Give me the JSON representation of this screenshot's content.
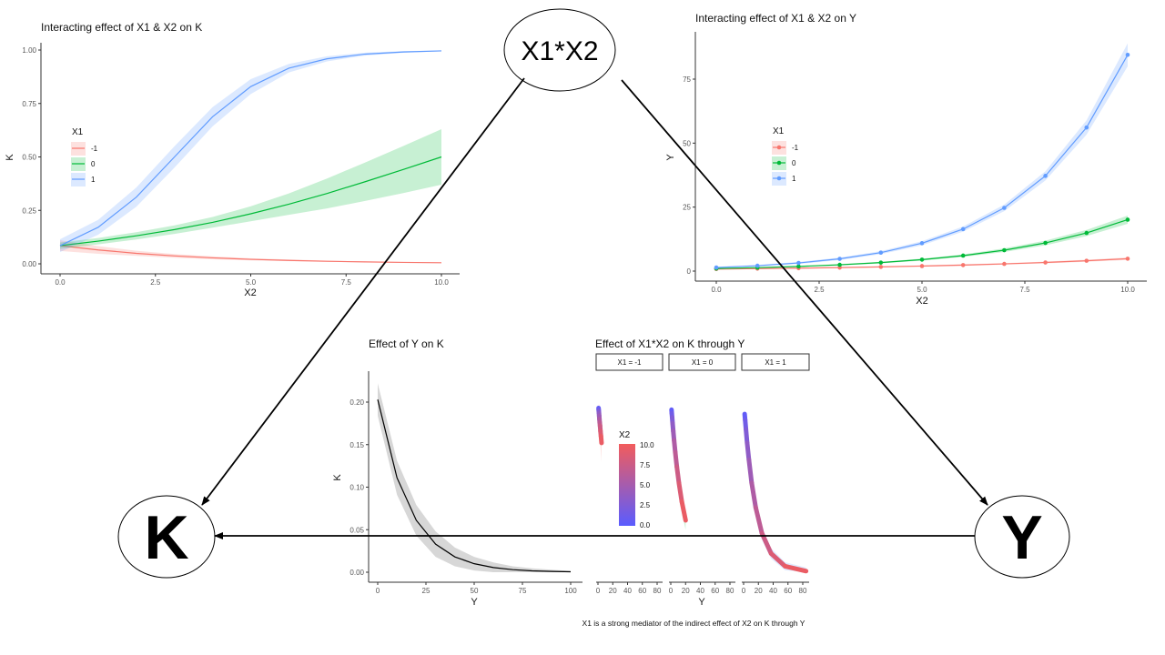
{
  "diagram": {
    "nodes": {
      "interaction": "X1*X2",
      "k": "K",
      "y": "Y"
    },
    "caption": "X1 is a strong mediator of the indirect effect of X2 on K through Y"
  },
  "colors": {
    "neg": "#f8766d",
    "zero": "#00ba38",
    "pos": "#619cff",
    "grad_low": "#5a5cff",
    "grad_high": "#f25c5c",
    "band_gray": "#d3d3d3"
  },
  "chart_data": [
    {
      "type": "line",
      "title": "Interacting effect of X1 & X2 on K",
      "xlabel": "X2",
      "ylabel": "K",
      "xlim": [
        0,
        10
      ],
      "ylim": [
        0,
        1
      ],
      "xticks": [
        "0.0",
        "2.5",
        "5.0",
        "7.5",
        "10.0"
      ],
      "yticks": [
        "0.00",
        "0.25",
        "0.50",
        "0.75",
        "1.00"
      ],
      "legend": {
        "title": "X1",
        "placement": "left"
      },
      "x": [
        0,
        1,
        2,
        3,
        4,
        5,
        6,
        7,
        8,
        9,
        10
      ],
      "series": [
        {
          "name": "-1",
          "values": [
            0.085,
            0.065,
            0.049,
            0.037,
            0.028,
            0.021,
            0.016,
            0.012,
            0.009,
            0.0066,
            0.005
          ],
          "halfwidth": [
            0.025,
            0.018,
            0.012,
            0.009,
            0.007,
            0.005,
            0.004,
            0.003,
            0.002,
            0.002,
            0.002
          ]
        },
        {
          "name": "0",
          "values": [
            0.085,
            0.106,
            0.131,
            0.16,
            0.194,
            0.234,
            0.279,
            0.329,
            0.384,
            0.441,
            0.5
          ],
          "halfwidth": [
            0.015,
            0.015,
            0.017,
            0.02,
            0.025,
            0.035,
            0.05,
            0.07,
            0.09,
            0.11,
            0.13
          ]
        },
        {
          "name": "1",
          "values": [
            0.085,
            0.171,
            0.312,
            0.5,
            0.688,
            0.829,
            0.915,
            0.959,
            0.981,
            0.991,
            0.996
          ],
          "halfwidth": [
            0.03,
            0.035,
            0.045,
            0.05,
            0.045,
            0.035,
            0.02,
            0.012,
            0.007,
            0.004,
            0.002
          ]
        }
      ]
    },
    {
      "type": "line",
      "title": "Interacting effect of X1 & X2 on Y",
      "xlabel": "X2",
      "ylabel": "Y",
      "xlim": [
        0,
        10
      ],
      "ylim": [
        0,
        75
      ],
      "xticks": [
        "0.0",
        "2.5",
        "5.0",
        "7.5",
        "10.0"
      ],
      "yticks": [
        "0",
        "25",
        "50",
        "75"
      ],
      "legend": {
        "title": "X1",
        "placement": "left"
      },
      "x": [
        0,
        1,
        2,
        3,
        4,
        5,
        6,
        7,
        8,
        9,
        10
      ],
      "series": [
        {
          "name": "-1",
          "values": [
            0.8,
            0.96,
            1.15,
            1.37,
            1.64,
            1.97,
            2.35,
            2.82,
            3.37,
            4.04,
            4.84
          ],
          "halfwidth": [
            0.2,
            0.2,
            0.2,
            0.2,
            0.2,
            0.25,
            0.3,
            0.3,
            0.35,
            0.4,
            0.5
          ]
        },
        {
          "name": "0",
          "values": [
            1,
            1.35,
            1.82,
            2.46,
            3.32,
            4.48,
            6.05,
            8.17,
            11.0,
            14.9,
            20.1
          ],
          "halfwidth": [
            0.2,
            0.2,
            0.2,
            0.3,
            0.3,
            0.4,
            0.5,
            0.7,
            0.9,
            1.2,
            1.6
          ]
        },
        {
          "name": "1",
          "values": [
            1.4,
            2.11,
            3.18,
            4.79,
            7.22,
            10.9,
            16.4,
            24.7,
            37.2,
            56.1,
            84.5
          ],
          "halfwidth": [
            0.3,
            0.3,
            0.4,
            0.5,
            0.6,
            0.8,
            1.0,
            1.3,
            1.8,
            2.8,
            4.5
          ]
        }
      ]
    },
    {
      "type": "line",
      "title": "Effect of Y on K",
      "xlabel": "Y",
      "ylabel": "K",
      "xlim": [
        0,
        100
      ],
      "ylim": [
        0,
        0.2
      ],
      "xticks": [
        "0",
        "25",
        "50",
        "75",
        "100"
      ],
      "yticks": [
        "0.00",
        "0.05",
        "0.10",
        "0.15",
        "0.20"
      ],
      "x": [
        0,
        10,
        20,
        30,
        40,
        50,
        60,
        70,
        80,
        90,
        100
      ],
      "series": [
        {
          "name": "fit",
          "values": [
            0.203,
            0.111,
            0.061,
            0.033,
            0.018,
            0.01,
            0.0055,
            0.003,
            0.0016,
            0.0009,
            0.0005
          ],
          "halfwidth": [
            0.019,
            0.02,
            0.018,
            0.015,
            0.011,
            0.008,
            0.006,
            0.004,
            0.003,
            0.002,
            0.001
          ]
        }
      ]
    },
    {
      "type": "line",
      "title": "Effect of X1*X2 on K through Y",
      "xlabel": "Y",
      "xlim": [
        0,
        85
      ],
      "ylim": [
        0,
        0.2
      ],
      "xticks": [
        "0",
        "20",
        "40",
        "60",
        "80"
      ],
      "colorbar": {
        "title": "X2",
        "ticks": [
          "10.0",
          "7.5",
          "5.0",
          "2.5",
          "0.0"
        ],
        "range": [
          0,
          10
        ]
      },
      "x2": [
        0,
        1,
        2,
        3,
        4,
        5,
        6,
        7,
        8,
        9,
        10
      ],
      "facets": [
        {
          "label": "X1 = -1",
          "y": [
            0.8,
            0.96,
            1.15,
            1.37,
            1.64,
            1.97,
            2.35,
            2.82,
            3.37,
            4.04,
            4.84
          ],
          "k": [
            0.193,
            0.191,
            0.189,
            0.187,
            0.184,
            0.18,
            0.176,
            0.172,
            0.166,
            0.16,
            0.152
          ]
        },
        {
          "label": "X1 = 0",
          "y": [
            1,
            1.35,
            1.82,
            2.46,
            3.32,
            4.48,
            6.05,
            8.17,
            11.0,
            14.9,
            20.1
          ],
          "k": [
            0.191,
            0.187,
            0.182,
            0.175,
            0.166,
            0.155,
            0.141,
            0.124,
            0.105,
            0.083,
            0.061
          ]
        },
        {
          "label": "X1 = 1",
          "y": [
            1.4,
            2.11,
            3.18,
            4.79,
            7.22,
            10.9,
            16.4,
            24.7,
            37.2,
            56.1,
            84.5
          ],
          "k": [
            0.186,
            0.179,
            0.168,
            0.152,
            0.132,
            0.105,
            0.076,
            0.046,
            0.022,
            0.007,
            0.0013
          ]
        }
      ]
    }
  ]
}
